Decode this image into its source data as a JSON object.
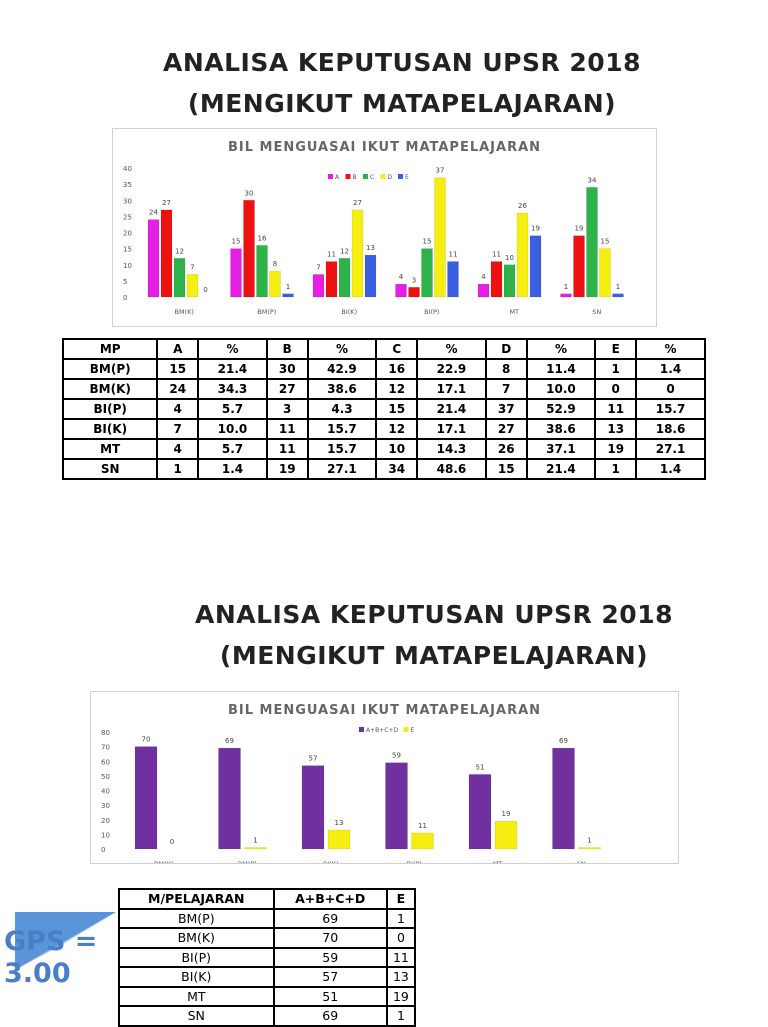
{
  "section1": {
    "title_line1": "ANALISA KEPUTUSAN UPSR 2018",
    "title_line2": "(MENGIKUT MATAPELAJARAN)"
  },
  "section2": {
    "title_line1": "ANALISA KEPUTUSAN UPSR 2018",
    "title_line2": "(MENGIKUT MATAPELAJARAN)"
  },
  "chart_data": [
    {
      "type": "bar",
      "title": "BIL MENGUASAI IKUT MATAPELAJARAN",
      "categories": [
        "BM(K)",
        "BM(P)",
        "BI(K)",
        "BI(P)",
        "MT",
        "SN"
      ],
      "ylim": [
        0,
        40
      ],
      "yticks": [
        0,
        5,
        10,
        15,
        20,
        25,
        30,
        35,
        40
      ],
      "legend": "top-center",
      "series": [
        {
          "name": "A",
          "color": "#e61ee6",
          "values": [
            24,
            15,
            7,
            4,
            4,
            1
          ]
        },
        {
          "name": "B",
          "color": "#ee1111",
          "values": [
            27,
            30,
            11,
            3,
            11,
            19
          ]
        },
        {
          "name": "C",
          "color": "#2db34a",
          "values": [
            12,
            16,
            12,
            15,
            10,
            34
          ]
        },
        {
          "name": "D",
          "color": "#f5ee10",
          "values": [
            7,
            8,
            27,
            37,
            26,
            15
          ]
        },
        {
          "name": "E",
          "color": "#3a5fe0",
          "values": [
            0,
            1,
            13,
            11,
            19,
            1
          ]
        }
      ]
    },
    {
      "type": "bar",
      "title": "BIL MENGUASAI IKUT MATAPELAJARAN",
      "categories": [
        "BM(K)",
        "BM(P)",
        "BI(K)",
        "BI(P)",
        "MT",
        "SN"
      ],
      "ylim": [
        0,
        80
      ],
      "yticks": [
        0,
        10,
        20,
        30,
        40,
        50,
        60,
        70,
        80
      ],
      "legend": "top-center",
      "series": [
        {
          "name": "A+B+C+D",
          "color": "#7030a0",
          "values": [
            70,
            69,
            57,
            59,
            51,
            69
          ]
        },
        {
          "name": "E",
          "color": "#f5ee10",
          "values": [
            0,
            1,
            13,
            11,
            19,
            1
          ]
        }
      ]
    }
  ],
  "table1": {
    "headers": [
      "MP",
      "A",
      "%",
      "B",
      "%",
      "C",
      "%",
      "D",
      "%",
      "E",
      "%"
    ],
    "rows": [
      [
        "BM(P)",
        "15",
        "21.4",
        "30",
        "42.9",
        "16",
        "22.9",
        "8",
        "11.4",
        "1",
        "1.4"
      ],
      [
        "BM(K)",
        "24",
        "34.3",
        "27",
        "38.6",
        "12",
        "17.1",
        "7",
        "10.0",
        "0",
        "0"
      ],
      [
        "BI(P)",
        "4",
        "5.7",
        "3",
        "4.3",
        "15",
        "21.4",
        "37",
        "52.9",
        "11",
        "15.7"
      ],
      [
        "BI(K)",
        "7",
        "10.0",
        "11",
        "15.7",
        "12",
        "17.1",
        "27",
        "38.6",
        "13",
        "18.6"
      ],
      [
        "MT",
        "4",
        "5.7",
        "11",
        "15.7",
        "10",
        "14.3",
        "26",
        "37.1",
        "19",
        "27.1"
      ],
      [
        "SN",
        "1",
        "1.4",
        "19",
        "27.1",
        "34",
        "48.6",
        "15",
        "21.4",
        "1",
        "1.4"
      ]
    ]
  },
  "table2": {
    "headers": [
      "M/PELAJARAN",
      "A+B+C+D",
      "E"
    ],
    "rows": [
      [
        "BM(P)",
        "69",
        "1"
      ],
      [
        "BM(K)",
        "70",
        "0"
      ],
      [
        "BI(P)",
        "59",
        "11"
      ],
      [
        "BI(K)",
        "57",
        "13"
      ],
      [
        "MT",
        "51",
        "19"
      ],
      [
        "SN",
        "69",
        "1"
      ]
    ]
  },
  "gps": {
    "label": "GPS = 3.00",
    "color": "#4a7fc8"
  }
}
